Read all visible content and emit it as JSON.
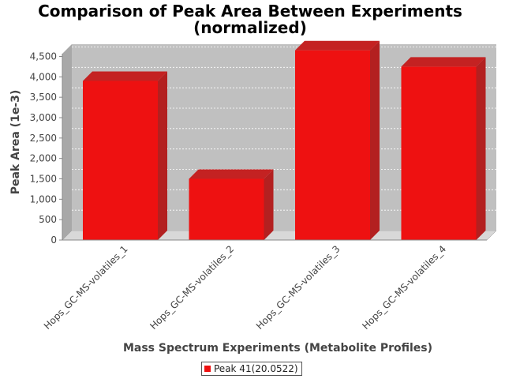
{
  "chart_data": {
    "type": "bar",
    "title": [
      "Comparison of Peak Area Between Experiments",
      "(normalized)"
    ],
    "xlabel": "Mass Spectrum Experiments (Metabolite Profiles)",
    "ylabel": "Peak Area (1e-3)",
    "categories": [
      "Hops_GC-MS-volatiles_1",
      "Hops_GC-MS-volatiles_2",
      "Hops_GC-MS-volatiles_3",
      "Hops_GC-MS-volatiles_4"
    ],
    "series": [
      {
        "name": "Peak 41(20.0522)",
        "values": [
          3900,
          1500,
          4650,
          4250
        ],
        "color": "#ee1111"
      }
    ],
    "ylim": [
      0,
      4800
    ],
    "yticks": [
      0,
      500,
      1000,
      1500,
      2000,
      2500,
      3000,
      3500,
      4000,
      4500
    ],
    "ytick_labels": [
      "0",
      "500",
      "1,000",
      "1,500",
      "2,000",
      "2,500",
      "3,000",
      "3,500",
      "4,000",
      "4,500"
    ],
    "grid": true,
    "three_d": true,
    "legend_position": "bottom",
    "colors": {
      "plot_background": "#c0c0c0",
      "floor": "#d8d8d8",
      "bar_front": "#ee1111",
      "bar_side": "#b32020",
      "bar_top": "#c42222"
    }
  }
}
